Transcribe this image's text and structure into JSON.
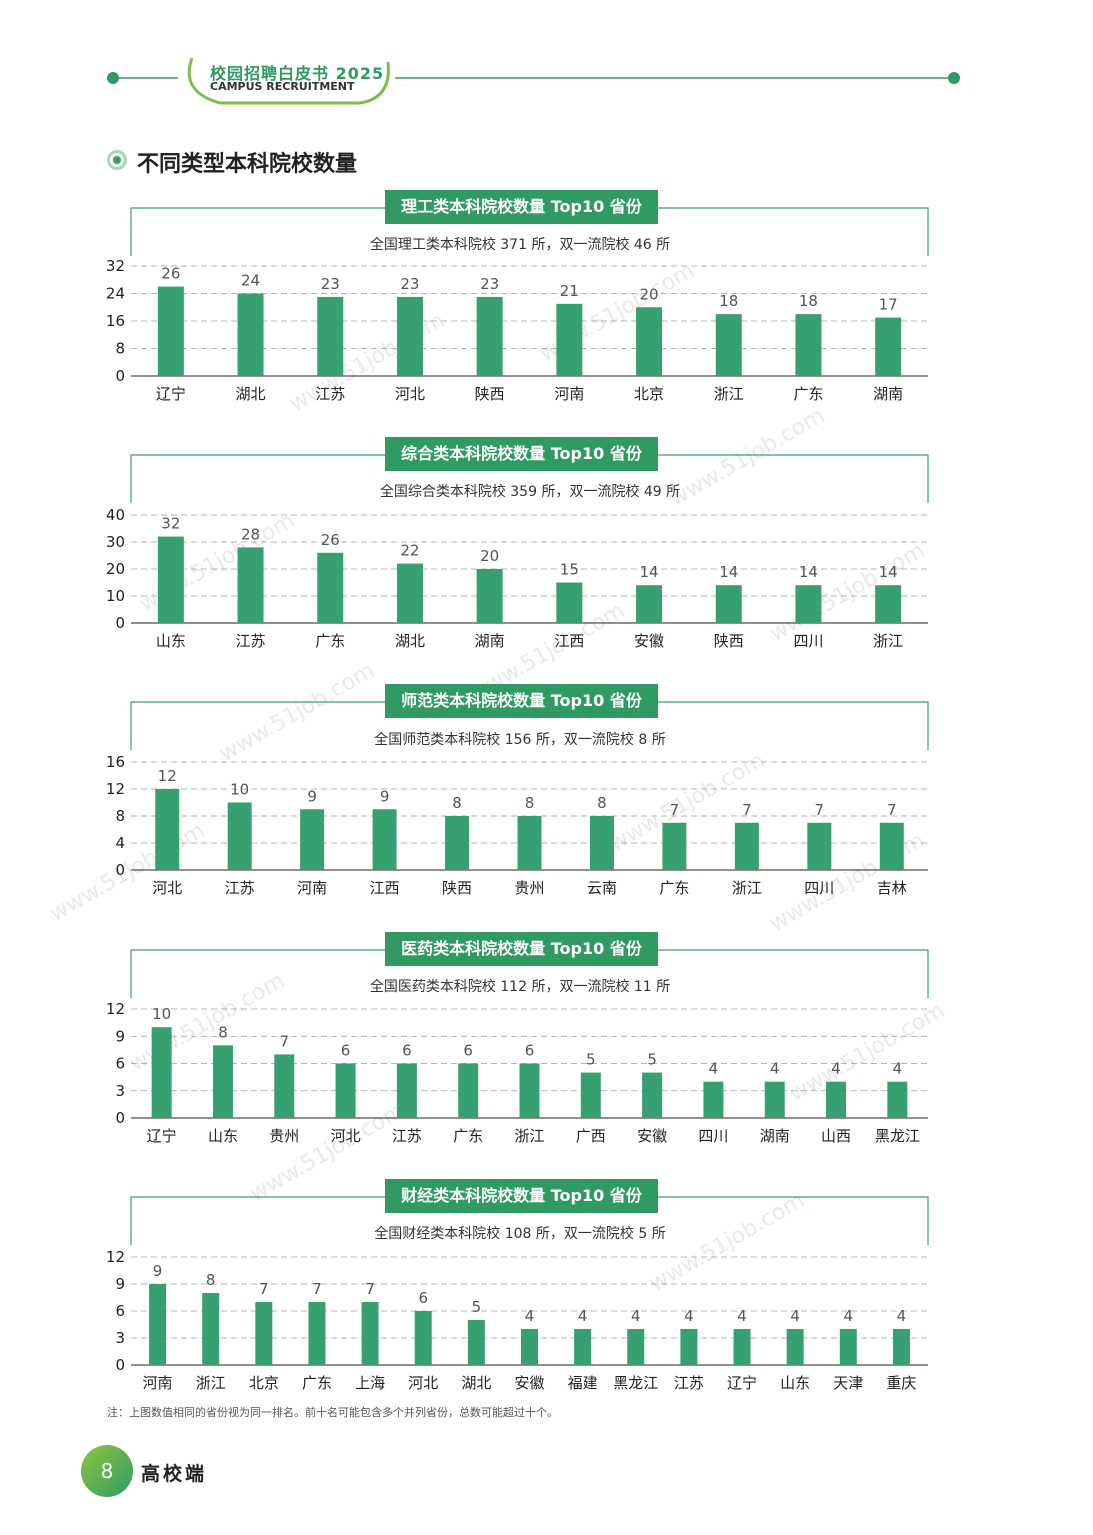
{
  "header": {
    "title": "校园招聘白皮书 2025",
    "subtitle": "CAMPUS RECRUITMENT",
    "accent_color": "#2f9b63"
  },
  "section": {
    "title": "不同类型本科院校数量"
  },
  "watermark": "www.51job.com",
  "chart_data": [
    {
      "type": "bar",
      "title": "理工类本科院校数量 Top10 省份",
      "subtitle": "全国理工类本科院校 371 所，双一流院校 46 所",
      "categories": [
        "辽宁",
        "湖北",
        "江苏",
        "河北",
        "陕西",
        "河南",
        "北京",
        "浙江",
        "广东",
        "湖南"
      ],
      "values": [
        26,
        24,
        23,
        23,
        23,
        21,
        20,
        18,
        18,
        17
      ],
      "yticks": [
        0,
        8,
        16,
        24,
        32
      ],
      "ylim": [
        0,
        32
      ],
      "grid": true
    },
    {
      "type": "bar",
      "title": "综合类本科院校数量 Top10 省份",
      "subtitle": "全国综合类本科院校 359 所，双一流院校 49 所",
      "categories": [
        "山东",
        "江苏",
        "广东",
        "湖北",
        "湖南",
        "江西",
        "安徽",
        "陕西",
        "四川",
        "浙江"
      ],
      "values": [
        32,
        28,
        26,
        22,
        20,
        15,
        14,
        14,
        14,
        14
      ],
      "yticks": [
        0,
        10,
        20,
        30,
        40
      ],
      "ylim": [
        0,
        40
      ],
      "grid": true
    },
    {
      "type": "bar",
      "title": "师范类本科院校数量 Top10 省份",
      "subtitle": "全国师范类本科院校 156 所，双一流院校 8 所",
      "categories": [
        "河北",
        "江苏",
        "河南",
        "江西",
        "陕西",
        "贵州",
        "云南",
        "广东",
        "浙江",
        "四川",
        "吉林"
      ],
      "values": [
        12,
        10,
        9,
        9,
        8,
        8,
        8,
        7,
        7,
        7,
        7
      ],
      "yticks": [
        0,
        4,
        8,
        12,
        16
      ],
      "ylim": [
        0,
        16
      ],
      "grid": true
    },
    {
      "type": "bar",
      "title": "医药类本科院校数量 Top10 省份",
      "subtitle": "全国医药类本科院校 112 所，双一流院校 11 所",
      "categories": [
        "辽宁",
        "山东",
        "贵州",
        "河北",
        "江苏",
        "广东",
        "浙江",
        "广西",
        "安徽",
        "四川",
        "湖南",
        "山西",
        "黑龙江"
      ],
      "values": [
        10,
        8,
        7,
        6,
        6,
        6,
        6,
        5,
        5,
        4,
        4,
        4,
        4
      ],
      "yticks": [
        0,
        3,
        6,
        9,
        12
      ],
      "ylim": [
        0,
        12
      ],
      "grid": true
    },
    {
      "type": "bar",
      "title": "财经类本科院校数量 Top10 省份",
      "subtitle": "全国财经类本科院校 108 所，双一流院校 5 所",
      "categories": [
        "河南",
        "浙江",
        "北京",
        "广东",
        "上海",
        "河北",
        "湖北",
        "安徽",
        "福建",
        "黑龙江",
        "江苏",
        "辽宁",
        "山东",
        "天津",
        "重庆"
      ],
      "values": [
        9,
        8,
        7,
        7,
        7,
        6,
        5,
        4,
        4,
        4,
        4,
        4,
        4,
        4,
        4
      ],
      "yticks": [
        0,
        3,
        6,
        9,
        12
      ],
      "ylim": [
        0,
        12
      ],
      "grid": true
    }
  ],
  "footnote": "注：上图数值相同的省份视为同一排名。前十名可能包含多个并列省份，总数可能超过十个。",
  "page": {
    "number": "8",
    "label": "高校端"
  },
  "colors": {
    "bar": "#37a070",
    "frame": "#3aa06a"
  }
}
